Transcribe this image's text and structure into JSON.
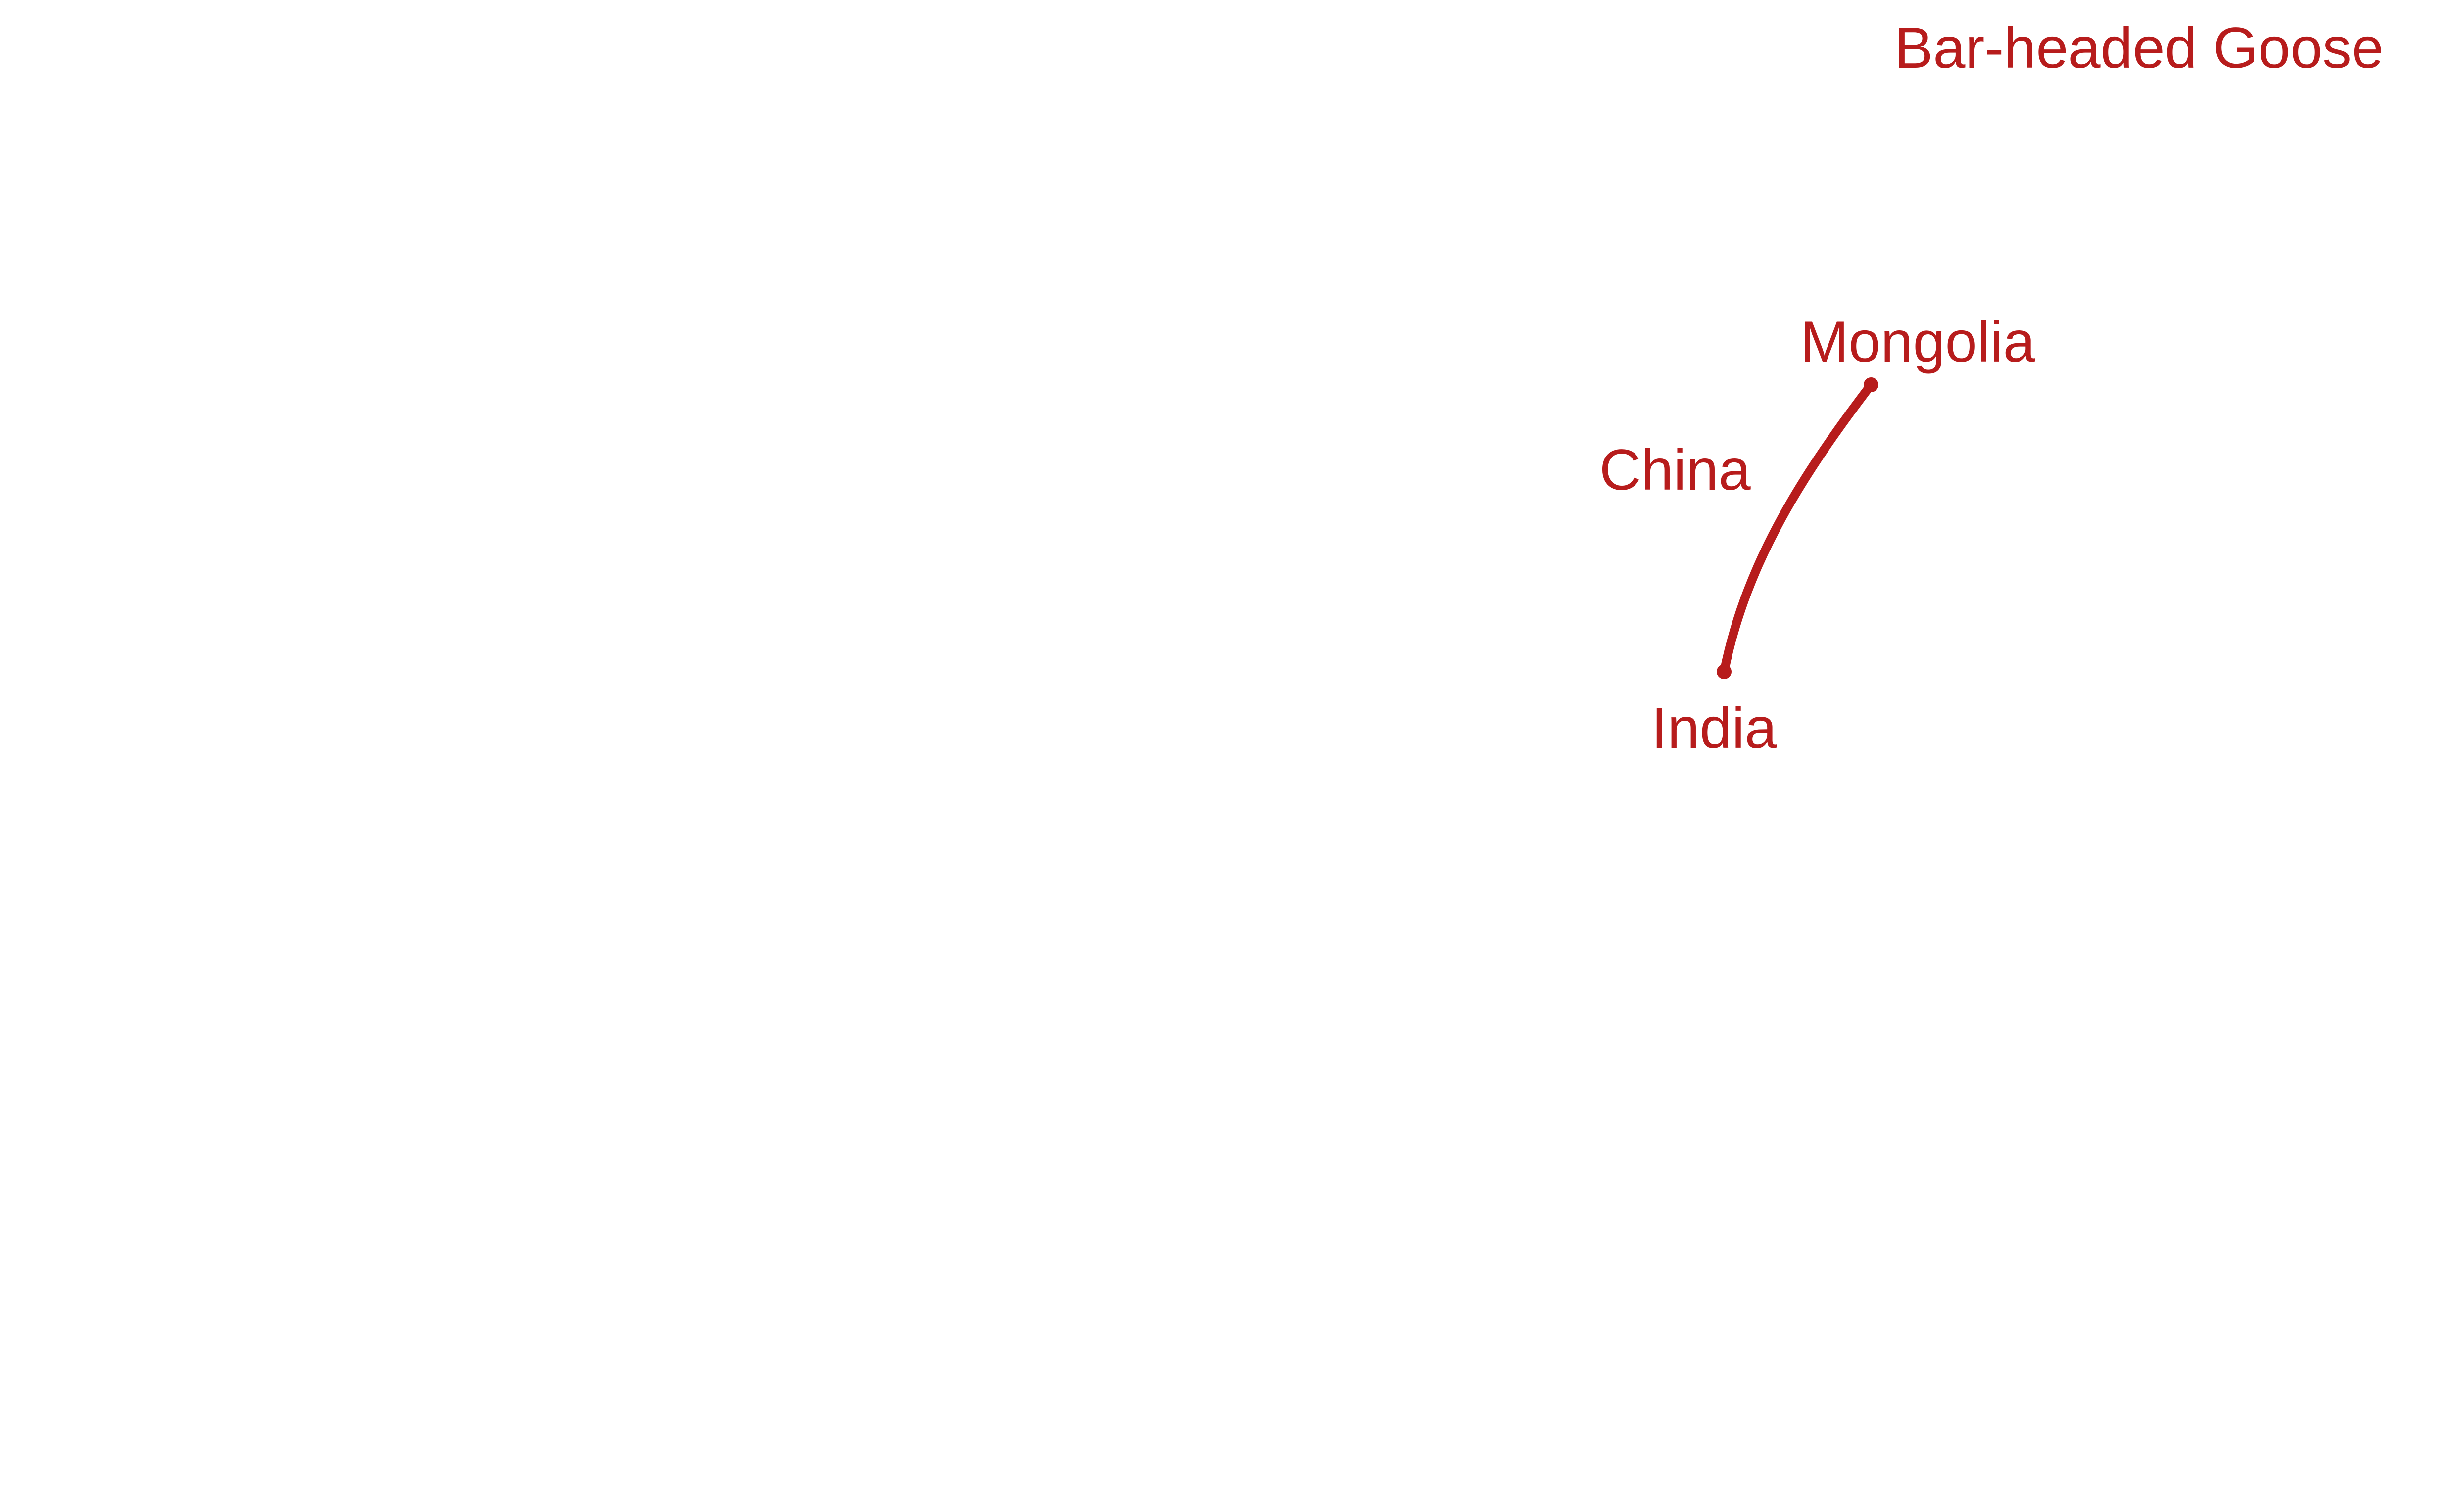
{
  "title": "Bar-headed Goose",
  "accent_color": "#B71C1C",
  "labels": {
    "origin": "Mongolia",
    "waypoint": "China",
    "destination": "India"
  }
}
